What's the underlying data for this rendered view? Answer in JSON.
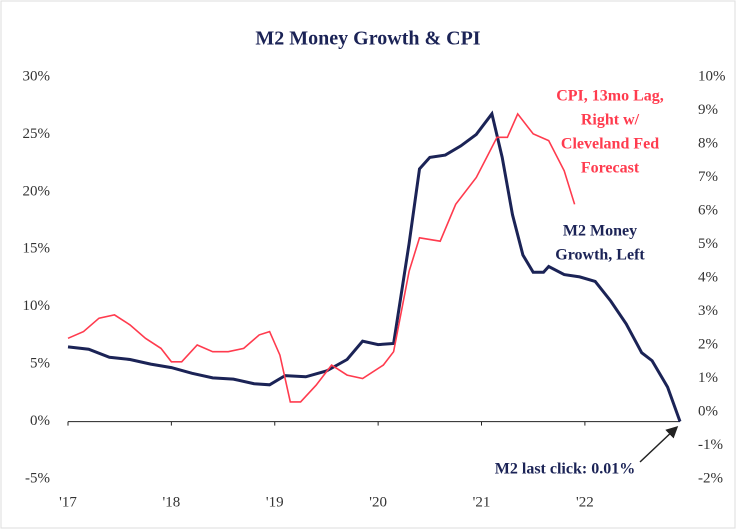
{
  "chart_data": {
    "type": "line",
    "title": "M2 Money Growth & CPI",
    "xlim": [
      2017,
      2022.92
    ],
    "xticks": [
      {
        "value": 2017,
        "label": "'17"
      },
      {
        "value": 2018,
        "label": "'18"
      },
      {
        "value": 2019,
        "label": "'19"
      },
      {
        "value": 2020,
        "label": "'20"
      },
      {
        "value": 2021,
        "label": "'21"
      },
      {
        "value": 2022,
        "label": "'22"
      }
    ],
    "ylim": [
      -5,
      30
    ],
    "yticks": [
      {
        "value": -5,
        "label": "-5%"
      },
      {
        "value": 0,
        "label": "0%"
      },
      {
        "value": 5,
        "label": "5%"
      },
      {
        "value": 10,
        "label": "10%"
      },
      {
        "value": 15,
        "label": "15%"
      },
      {
        "value": 20,
        "label": "20%"
      },
      {
        "value": 25,
        "label": "25%"
      },
      {
        "value": 30,
        "label": "30%"
      }
    ],
    "y2lim": [
      -2,
      10
    ],
    "y2ticks": [
      {
        "value": -2,
        "label": "-2%"
      },
      {
        "value": -1,
        "label": "-1%"
      },
      {
        "value": 0,
        "label": "0%"
      },
      {
        "value": 1,
        "label": "1%"
      },
      {
        "value": 2,
        "label": "2%"
      },
      {
        "value": 3,
        "label": "3%"
      },
      {
        "value": 4,
        "label": "4%"
      },
      {
        "value": 5,
        "label": "5%"
      },
      {
        "value": 6,
        "label": "6%"
      },
      {
        "value": 7,
        "label": "7%"
      },
      {
        "value": 8,
        "label": "8%"
      },
      {
        "value": 9,
        "label": "9%"
      },
      {
        "value": 10,
        "label": "10%"
      }
    ],
    "series": [
      {
        "name": "M2 Money Growth, Left",
        "color": "#1b2356",
        "x": [
          2017.0,
          2017.2,
          2017.4,
          2017.6,
          2017.8,
          2018.0,
          2018.2,
          2018.4,
          2018.6,
          2018.8,
          2018.95,
          2019.1,
          2019.3,
          2019.5,
          2019.7,
          2019.85,
          2020.0,
          2020.15,
          2020.3,
          2020.4,
          2020.5,
          2020.65,
          2020.8,
          2020.95,
          2021.1,
          2021.2,
          2021.3,
          2021.4,
          2021.5,
          2021.6,
          2021.65,
          2021.8,
          2021.95,
          2022.1,
          2022.25,
          2022.4,
          2022.55,
          2022.65,
          2022.8,
          2022.92
        ],
        "values": [
          6.5,
          6.3,
          5.6,
          5.4,
          5.0,
          4.7,
          4.2,
          3.8,
          3.7,
          3.3,
          3.2,
          4.0,
          3.9,
          4.4,
          5.4,
          7.0,
          6.7,
          6.8,
          15.5,
          22.0,
          23.0,
          23.2,
          24.0,
          25.0,
          26.8,
          23.0,
          18.0,
          14.5,
          13.0,
          13.0,
          13.5,
          12.8,
          12.6,
          12.2,
          10.5,
          8.5,
          6.0,
          5.3,
          3.0,
          0.01
        ]
      },
      {
        "name": "CPI, 13mo Lag, Right w/ Cleveland Fed Forecast",
        "color": "#ff3b4e",
        "axis": "y2",
        "x": [
          2017.0,
          2017.15,
          2017.3,
          2017.45,
          2017.6,
          2017.75,
          2017.9,
          2018.0,
          2018.1,
          2018.25,
          2018.4,
          2018.55,
          2018.7,
          2018.85,
          2018.95,
          2019.05,
          2019.15,
          2019.25,
          2019.4,
          2019.55,
          2019.7,
          2019.85,
          2020.05,
          2020.15,
          2020.3,
          2020.4,
          2020.6,
          2020.75,
          2020.95,
          2021.05,
          2021.15,
          2021.25,
          2021.35,
          2021.5,
          2021.65,
          2021.8,
          2021.9
        ],
        "values": [
          2.2,
          2.4,
          2.8,
          2.9,
          2.6,
          2.2,
          1.9,
          1.5,
          1.5,
          2.0,
          1.8,
          1.8,
          1.9,
          2.3,
          2.4,
          1.7,
          0.3,
          0.3,
          0.8,
          1.4,
          1.1,
          1.0,
          1.4,
          1.8,
          4.2,
          5.2,
          5.1,
          6.2,
          7.0,
          7.6,
          8.2,
          8.2,
          8.9,
          8.3,
          8.1,
          7.2,
          6.2
        ]
      }
    ],
    "annotations": [
      {
        "lines": [
          "CPI, 13mo Lag,",
          "Right w/",
          "Cleveland Fed",
          "Forecast"
        ],
        "color": "#ff3b4e"
      },
      {
        "lines": [
          "M2 Money",
          "Growth, Left"
        ],
        "color": "#1b2356"
      },
      {
        "lines": [
          "M2 last click: 0.01%"
        ],
        "color": "#1b2356"
      }
    ]
  }
}
